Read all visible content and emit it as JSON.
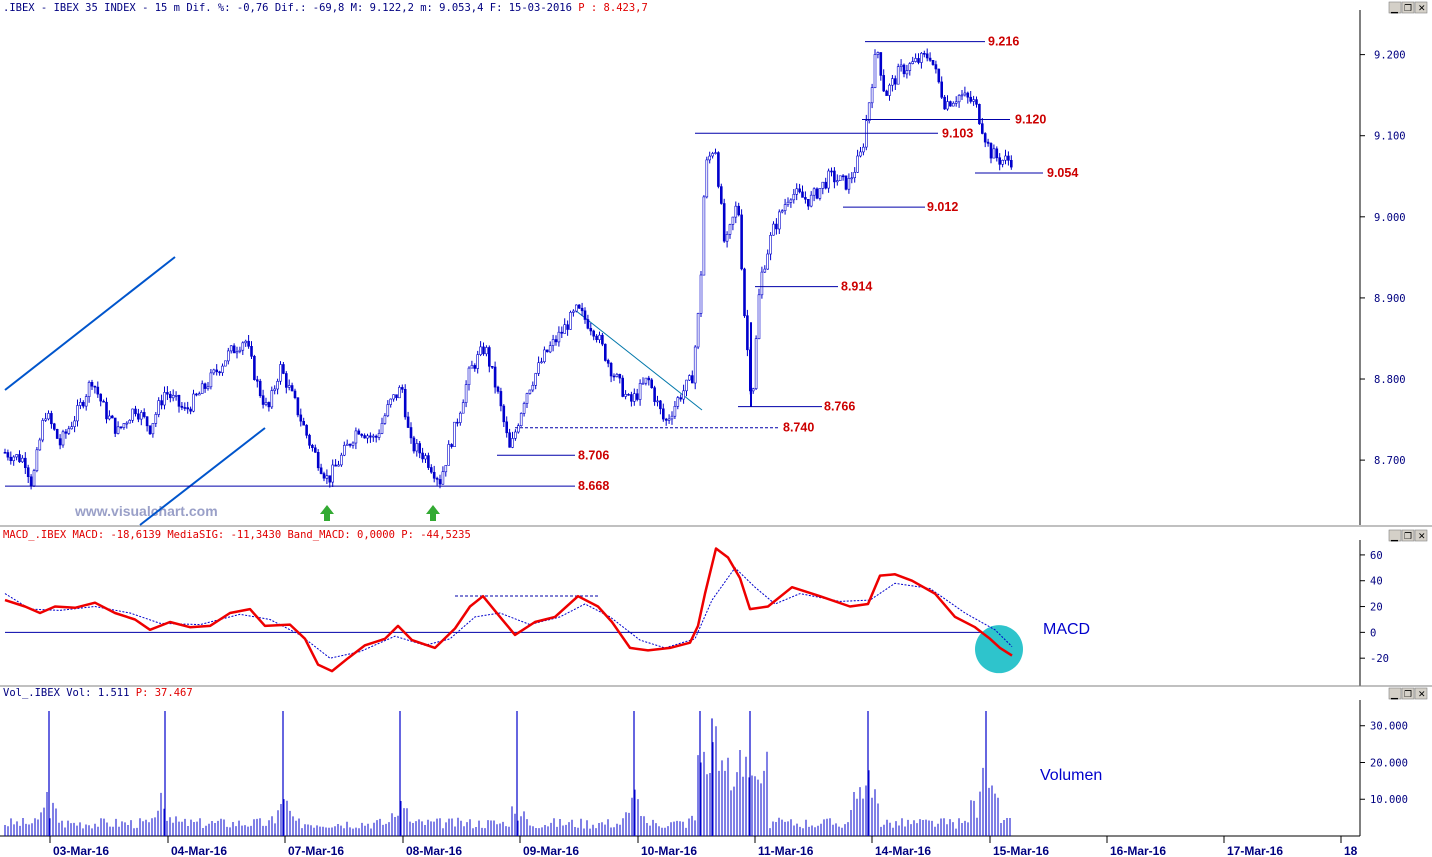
{
  "header": {
    "main": {
      "prefix": ".IBEX - IBEX 35 INDEX -  15 m Dif. %: -0,76 Dif.: -69,8 M: 9.122,2 m: 9.053,4 F: 15-03-2016 ",
      "last_label": "P : 8.423,7"
    },
    "macd": {
      "prefix": "MACD_.IBEX MACD: -18,6139 MediaSIG: -11,3430 Band_MACD: 0,0000 ",
      "last_label": "P: -44,5235"
    },
    "volume": {
      "prefix": "Vol_.IBEX Vol: 1.511 ",
      "last_label": "P: 37.467"
    }
  },
  "watermark": "www.visualchart.com",
  "panel_labels": {
    "macd": "MACD",
    "volume": "Volumen"
  },
  "window_buttons": {
    "minimize": "minimize-icon",
    "restore": "restore-icon",
    "close": "close-icon"
  },
  "colors": {
    "price": "#0000cc",
    "level_line": "#0000aa",
    "trend_line": "#0055cc",
    "level_text": "#cc0000",
    "macd_line": "#ee0000",
    "signal_line": "#0000cc",
    "volume_bar": "#0000cc",
    "highlight": "#2ec4cc",
    "arrow": "#33aa33"
  },
  "chart_data": [
    {
      "type": "candlestick",
      "series_name": "IBEX 35 INDEX 15m",
      "ylim": [
        8620,
        9255
      ],
      "y_ticks": [
        {
          "v": 9200,
          "label": "9.200"
        },
        {
          "v": 9100,
          "label": "9.100"
        },
        {
          "v": 9000,
          "label": "9.000"
        },
        {
          "v": 8900,
          "label": "8.900"
        },
        {
          "v": 8800,
          "label": "8.800"
        },
        {
          "v": 8700,
          "label": "8.700"
        }
      ],
      "x_labels": [
        "03-Mar-16",
        "04-Mar-16",
        "07-Mar-16",
        "08-Mar-16",
        "09-Mar-16",
        "10-Mar-16",
        "11-Mar-16",
        "14-Mar-16",
        "15-Mar-16",
        "16-Mar-16",
        "17-Mar-16",
        "18"
      ],
      "price_path": [
        {
          "x": 0,
          "y": 8712
        },
        {
          "x": 25,
          "y": 8700
        },
        {
          "x": 32,
          "y": 8670
        },
        {
          "x": 45,
          "y": 8760
        },
        {
          "x": 60,
          "y": 8720
        },
        {
          "x": 78,
          "y": 8760
        },
        {
          "x": 92,
          "y": 8800
        },
        {
          "x": 105,
          "y": 8760
        },
        {
          "x": 118,
          "y": 8735
        },
        {
          "x": 135,
          "y": 8765
        },
        {
          "x": 150,
          "y": 8740
        },
        {
          "x": 165,
          "y": 8785
        },
        {
          "x": 185,
          "y": 8760
        },
        {
          "x": 205,
          "y": 8790
        },
        {
          "x": 228,
          "y": 8830
        },
        {
          "x": 245,
          "y": 8850
        },
        {
          "x": 258,
          "y": 8790
        },
        {
          "x": 268,
          "y": 8760
        },
        {
          "x": 280,
          "y": 8815
        },
        {
          "x": 295,
          "y": 8770
        },
        {
          "x": 310,
          "y": 8720
        },
        {
          "x": 328,
          "y": 8675
        },
        {
          "x": 342,
          "y": 8705
        },
        {
          "x": 358,
          "y": 8740
        },
        {
          "x": 375,
          "y": 8725
        },
        {
          "x": 390,
          "y": 8770
        },
        {
          "x": 402,
          "y": 8790
        },
        {
          "x": 410,
          "y": 8720
        },
        {
          "x": 425,
          "y": 8705
        },
        {
          "x": 440,
          "y": 8675
        },
        {
          "x": 455,
          "y": 8740
        },
        {
          "x": 470,
          "y": 8810
        },
        {
          "x": 485,
          "y": 8840
        },
        {
          "x": 498,
          "y": 8780
        },
        {
          "x": 510,
          "y": 8710
        },
        {
          "x": 525,
          "y": 8780
        },
        {
          "x": 545,
          "y": 8830
        },
        {
          "x": 560,
          "y": 8855
        },
        {
          "x": 577,
          "y": 8885
        },
        {
          "x": 595,
          "y": 8860
        },
        {
          "x": 612,
          "y": 8810
        },
        {
          "x": 630,
          "y": 8770
        },
        {
          "x": 648,
          "y": 8800
        },
        {
          "x": 665,
          "y": 8745
        },
        {
          "x": 680,
          "y": 8780
        },
        {
          "x": 692,
          "y": 8800
        },
        {
          "x": 700,
          "y": 8900
        },
        {
          "x": 705,
          "y": 9060
        },
        {
          "x": 715,
          "y": 9090
        },
        {
          "x": 725,
          "y": 8960
        },
        {
          "x": 738,
          "y": 9020
        },
        {
          "x": 745,
          "y": 8870
        },
        {
          "x": 752,
          "y": 8770
        },
        {
          "x": 760,
          "y": 8920
        },
        {
          "x": 772,
          "y": 8980
        },
        {
          "x": 790,
          "y": 9030
        },
        {
          "x": 810,
          "y": 9020
        },
        {
          "x": 830,
          "y": 9050
        },
        {
          "x": 848,
          "y": 9040
        },
        {
          "x": 862,
          "y": 9080
        },
        {
          "x": 870,
          "y": 9150
        },
        {
          "x": 877,
          "y": 9210
        },
        {
          "x": 885,
          "y": 9150
        },
        {
          "x": 900,
          "y": 9180
        },
        {
          "x": 915,
          "y": 9190
        },
        {
          "x": 930,
          "y": 9200
        },
        {
          "x": 945,
          "y": 9140
        },
        {
          "x": 960,
          "y": 9150
        },
        {
          "x": 975,
          "y": 9140
        },
        {
          "x": 990,
          "y": 9080
        },
        {
          "x": 1000,
          "y": 9070
        },
        {
          "x": 1012,
          "y": 9070
        }
      ],
      "levels": [
        {
          "value": 9216,
          "label": "9.216"
        },
        {
          "value": 9120,
          "label": "9.120"
        },
        {
          "value": 9103,
          "label": "9.103"
        },
        {
          "value": 9054,
          "label": "9.054"
        },
        {
          "value": 9012,
          "label": "9.012"
        },
        {
          "value": 8914,
          "label": "8.914"
        },
        {
          "value": 8766,
          "label": "8.766"
        },
        {
          "value": 8740,
          "label": "8.740"
        },
        {
          "value": 8706,
          "label": "8.706"
        },
        {
          "value": 8668,
          "label": "8.668"
        }
      ],
      "buy_arrows_x": [
        327,
        433
      ]
    },
    {
      "type": "line",
      "series_name": "MACD",
      "ylim": [
        -40,
        70
      ],
      "y_ticks": [
        {
          "v": 60,
          "label": "60"
        },
        {
          "v": 40,
          "label": "40"
        },
        {
          "v": 20,
          "label": "20"
        },
        {
          "v": 0,
          "label": "0"
        },
        {
          "v": -20,
          "label": "-20"
        }
      ],
      "macd": [
        {
          "x": 5,
          "y": 25
        },
        {
          "x": 25,
          "y": 20
        },
        {
          "x": 40,
          "y": 15
        },
        {
          "x": 55,
          "y": 20
        },
        {
          "x": 75,
          "y": 19
        },
        {
          "x": 95,
          "y": 23
        },
        {
          "x": 115,
          "y": 15
        },
        {
          "x": 135,
          "y": 10
        },
        {
          "x": 150,
          "y": 2
        },
        {
          "x": 170,
          "y": 8
        },
        {
          "x": 190,
          "y": 4
        },
        {
          "x": 210,
          "y": 5
        },
        {
          "x": 230,
          "y": 15
        },
        {
          "x": 250,
          "y": 18
        },
        {
          "x": 265,
          "y": 5
        },
        {
          "x": 290,
          "y": 6
        },
        {
          "x": 305,
          "y": -5
        },
        {
          "x": 318,
          "y": -25
        },
        {
          "x": 332,
          "y": -30
        },
        {
          "x": 348,
          "y": -20
        },
        {
          "x": 365,
          "y": -10
        },
        {
          "x": 385,
          "y": -5
        },
        {
          "x": 398,
          "y": 5
        },
        {
          "x": 412,
          "y": -6
        },
        {
          "x": 435,
          "y": -12
        },
        {
          "x": 455,
          "y": 3
        },
        {
          "x": 470,
          "y": 20
        },
        {
          "x": 483,
          "y": 28
        },
        {
          "x": 500,
          "y": 12
        },
        {
          "x": 515,
          "y": -2
        },
        {
          "x": 535,
          "y": 8
        },
        {
          "x": 555,
          "y": 12
        },
        {
          "x": 578,
          "y": 28
        },
        {
          "x": 598,
          "y": 20
        },
        {
          "x": 612,
          "y": 8
        },
        {
          "x": 630,
          "y": -12
        },
        {
          "x": 648,
          "y": -14
        },
        {
          "x": 670,
          "y": -12
        },
        {
          "x": 690,
          "y": -8
        },
        {
          "x": 698,
          "y": 5
        },
        {
          "x": 705,
          "y": 30
        },
        {
          "x": 716,
          "y": 65
        },
        {
          "x": 728,
          "y": 58
        },
        {
          "x": 740,
          "y": 42
        },
        {
          "x": 750,
          "y": 18
        },
        {
          "x": 768,
          "y": 20
        },
        {
          "x": 792,
          "y": 35
        },
        {
          "x": 820,
          "y": 28
        },
        {
          "x": 850,
          "y": 20
        },
        {
          "x": 868,
          "y": 22
        },
        {
          "x": 880,
          "y": 44
        },
        {
          "x": 895,
          "y": 45
        },
        {
          "x": 912,
          "y": 40
        },
        {
          "x": 935,
          "y": 30
        },
        {
          "x": 955,
          "y": 12
        },
        {
          "x": 975,
          "y": 4
        },
        {
          "x": 990,
          "y": -5
        },
        {
          "x": 1000,
          "y": -12
        },
        {
          "x": 1012,
          "y": -18
        }
      ],
      "signal": [
        {
          "x": 5,
          "y": 30
        },
        {
          "x": 30,
          "y": 18
        },
        {
          "x": 60,
          "y": 17
        },
        {
          "x": 95,
          "y": 20
        },
        {
          "x": 130,
          "y": 15
        },
        {
          "x": 160,
          "y": 7
        },
        {
          "x": 200,
          "y": 6
        },
        {
          "x": 240,
          "y": 14
        },
        {
          "x": 270,
          "y": 10
        },
        {
          "x": 300,
          "y": -2
        },
        {
          "x": 330,
          "y": -20
        },
        {
          "x": 360,
          "y": -15
        },
        {
          "x": 395,
          "y": -3
        },
        {
          "x": 425,
          "y": -10
        },
        {
          "x": 450,
          "y": -5
        },
        {
          "x": 475,
          "y": 12
        },
        {
          "x": 500,
          "y": 15
        },
        {
          "x": 530,
          "y": 6
        },
        {
          "x": 560,
          "y": 12
        },
        {
          "x": 585,
          "y": 22
        },
        {
          "x": 610,
          "y": 12
        },
        {
          "x": 640,
          "y": -6
        },
        {
          "x": 665,
          "y": -12
        },
        {
          "x": 695,
          "y": -5
        },
        {
          "x": 712,
          "y": 25
        },
        {
          "x": 735,
          "y": 50
        },
        {
          "x": 755,
          "y": 35
        },
        {
          "x": 775,
          "y": 22
        },
        {
          "x": 800,
          "y": 30
        },
        {
          "x": 840,
          "y": 24
        },
        {
          "x": 870,
          "y": 25
        },
        {
          "x": 895,
          "y": 38
        },
        {
          "x": 930,
          "y": 34
        },
        {
          "x": 965,
          "y": 15
        },
        {
          "x": 995,
          "y": 2
        },
        {
          "x": 1012,
          "y": -11
        }
      ]
    },
    {
      "type": "bar",
      "series_name": "Volume",
      "ylim": [
        0,
        37000
      ],
      "y_ticks": [
        {
          "v": 30000,
          "label": "30.000"
        },
        {
          "v": 20000,
          "label": "20.000"
        },
        {
          "v": 10000,
          "label": "10.000"
        }
      ],
      "spikes": [
        {
          "x": 49,
          "v": 34000
        },
        {
          "x": 165,
          "v": 34000
        },
        {
          "x": 283,
          "v": 34000
        },
        {
          "x": 400,
          "v": 34000
        },
        {
          "x": 517,
          "v": 34000
        },
        {
          "x": 634,
          "v": 34000
        },
        {
          "x": 700,
          "v": 34000
        },
        {
          "x": 712,
          "v": 32000
        },
        {
          "x": 750,
          "v": 34000
        },
        {
          "x": 868,
          "v": 34000
        },
        {
          "x": 986,
          "v": 34000
        }
      ]
    }
  ]
}
